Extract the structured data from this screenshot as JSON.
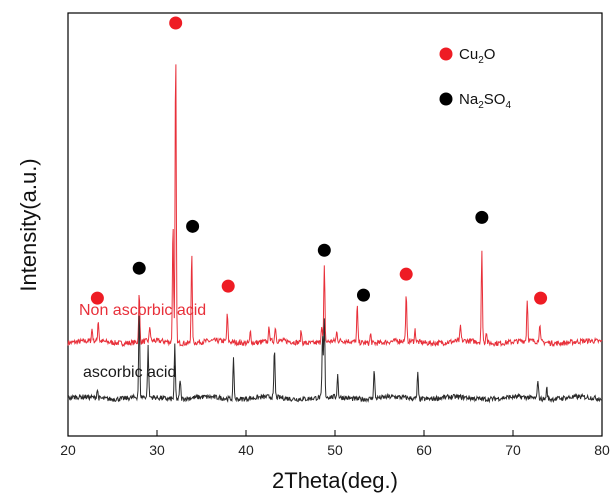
{
  "chart_data": {
    "type": "line",
    "xlabel": "2Theta(deg.)",
    "ylabel": "Intensity(a.u.)",
    "xlim": [
      20,
      80
    ],
    "x_ticks": [
      "20",
      "30",
      "40",
      "50",
      "60",
      "70",
      "80"
    ],
    "grid": false,
    "legend_position": "top-right",
    "colors": {
      "cu2o": "#ee1c24",
      "na2so4": "#000000",
      "non_ascorbic": "#e8303a",
      "ascorbic": "#2a2a2a"
    },
    "legend": [
      {
        "marker": "red-dot",
        "main": "Cu",
        "sub": "2",
        "tail": "O",
        "text": "Cu2O"
      },
      {
        "marker": "black-dot",
        "main": "Na",
        "sub": "2",
        "tail": "SO",
        "sub2": "4",
        "text": "Na2SO4"
      }
    ],
    "series": [
      {
        "name": "Non ascorbic acid",
        "color": "#e8303a",
        "baseline": 0.0,
        "peaks": [
          [
            22.7,
            0.04
          ],
          [
            23.4,
            0.07
          ],
          [
            28.0,
            0.16
          ],
          [
            29.2,
            0.05
          ],
          [
            31.8,
            0.4
          ],
          [
            32.1,
            0.97
          ],
          [
            33.9,
            0.3
          ],
          [
            37.9,
            0.09
          ],
          [
            40.5,
            0.04
          ],
          [
            42.6,
            0.05
          ],
          [
            43.3,
            0.05
          ],
          [
            46.2,
            0.04
          ],
          [
            48.5,
            0.06
          ],
          [
            48.8,
            0.25
          ],
          [
            50.2,
            0.03
          ],
          [
            52.5,
            0.12
          ],
          [
            54.0,
            0.03
          ],
          [
            58.0,
            0.15
          ],
          [
            59.0,
            0.04
          ],
          [
            64.1,
            0.05
          ],
          [
            66.5,
            0.3
          ],
          [
            67.0,
            0.04
          ],
          [
            71.6,
            0.14
          ],
          [
            73.0,
            0.06
          ]
        ]
      },
      {
        "name": "ascorbic acid",
        "color": "#2a2a2a",
        "baseline": 0.0,
        "peaks": [
          [
            23.3,
            0.03
          ],
          [
            28.0,
            0.3
          ],
          [
            29.0,
            0.18
          ],
          [
            32.0,
            0.19
          ],
          [
            32.6,
            0.07
          ],
          [
            38.6,
            0.14
          ],
          [
            43.2,
            0.17
          ],
          [
            48.6,
            0.22
          ],
          [
            48.8,
            0.28
          ],
          [
            50.3,
            0.08
          ],
          [
            54.4,
            0.1
          ],
          [
            59.3,
            0.09
          ],
          [
            72.8,
            0.07
          ],
          [
            73.8,
            0.04
          ]
        ]
      }
    ],
    "markers": [
      {
        "phase": "Cu2O",
        "x": 23.3,
        "intensity": 0.1
      },
      {
        "phase": "Na2SO4",
        "x": 28.0,
        "intensity": 0.2
      },
      {
        "phase": "Cu2O",
        "x": 32.1,
        "intensity": 1.02
      },
      {
        "phase": "Na2SO4",
        "x": 34.0,
        "intensity": 0.34
      },
      {
        "phase": "Cu2O",
        "x": 38.0,
        "intensity": 0.14
      },
      {
        "phase": "Na2SO4",
        "x": 48.8,
        "intensity": 0.26
      },
      {
        "phase": "Na2SO4",
        "x": 53.2,
        "intensity": 0.11
      },
      {
        "phase": "Cu2O",
        "x": 58.0,
        "intensity": 0.18
      },
      {
        "phase": "Na2SO4",
        "x": 66.5,
        "intensity": 0.37
      },
      {
        "phase": "Cu2O",
        "x": 73.1,
        "intensity": 0.1
      }
    ]
  }
}
